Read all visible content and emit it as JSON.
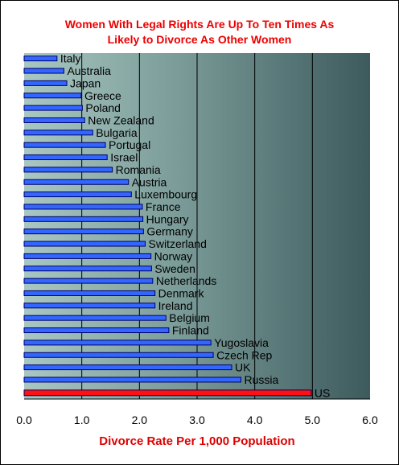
{
  "chart_data": {
    "type": "bar",
    "orientation": "horizontal",
    "title": "Women With Legal Rights Are Up To Ten Times As Likely to Divorce As Other Women",
    "title_lines": [
      "Women With Legal Rights Are Up To Ten Times As",
      "Likely to Divorce As Other Women"
    ],
    "xlabel": "Divorce Rate Per 1,000 Population",
    "ylabel": "",
    "xlim": [
      0,
      6
    ],
    "xticks": [
      "0.0",
      "1.0",
      "2.0",
      "3.0",
      "4.0",
      "5.0",
      "6.0"
    ],
    "grid": true,
    "categories": [
      "Italy",
      "Australia",
      "Japan",
      "Greece",
      "Poland",
      "New Zealand",
      "Bulgaria",
      "Portugal",
      "Israel",
      "Romania",
      "Austria",
      "Luxembourg",
      "France",
      "Hungary",
      "Germany",
      "Switzerland",
      "Norway",
      "Sweden",
      "Netherlands",
      "Denmark",
      "Ireland",
      "Belgium",
      "Finland",
      "Yugoslavia",
      "Czech Rep",
      "UK",
      "Russia",
      "US"
    ],
    "values": [
      0.57,
      0.69,
      0.74,
      0.99,
      1.01,
      1.05,
      1.19,
      1.41,
      1.44,
      1.53,
      1.81,
      1.86,
      2.05,
      2.06,
      2.07,
      2.1,
      2.2,
      2.21,
      2.23,
      2.27,
      2.27,
      2.46,
      2.51,
      3.24,
      3.28,
      3.6,
      3.76,
      4.98
    ],
    "highlight": "US",
    "colors": {
      "bar": "#3366ff",
      "bar_outline": "#000066",
      "highlight_bar": "#ff1111",
      "title": "#ee0000",
      "xlabel": "#dd0000",
      "gridline": "#000000",
      "plot_bg_left": "#a9c7c2",
      "plot_bg_mid": "#7a9b98",
      "plot_bg_right": "#3d5a5d"
    }
  }
}
